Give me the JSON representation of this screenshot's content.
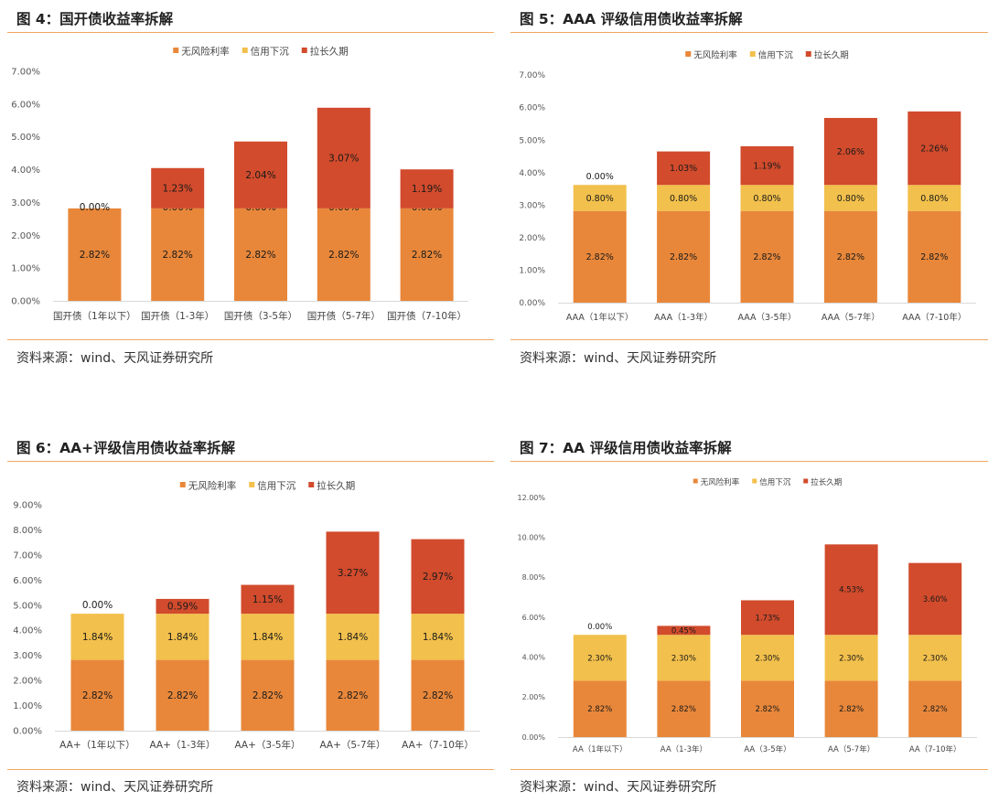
{
  "colors": {
    "rf": "#E8873A",
    "credit": "#F2C04C",
    "dur": "#D14B2C"
  },
  "charts": [
    {
      "title": "图 4：国开债收益率拆解",
      "source": "资料来源：wind、天风证券研究所",
      "chart_data": {
        "type": "bar",
        "stacked": true,
        "categories": [
          "国开债（1年以下）",
          "国开债（1-3年）",
          "国开债（3-5年）",
          "国开债（5-7年）",
          "国开债（7-10年）"
        ],
        "series": [
          {
            "name": "无风险利率",
            "values": [
              2.82,
              2.82,
              2.82,
              2.82,
              2.82
            ],
            "labels": [
              "2.82%",
              "2.82%",
              "2.82%",
              "2.82%",
              "2.82%"
            ]
          },
          {
            "name": "信用下沉",
            "values": [
              0.0,
              0.0,
              0.0,
              0.0,
              0.0
            ],
            "labels": [
              "0.00%",
              "0.00%",
              "0.00%",
              "0.00%",
              "0.00%"
            ]
          },
          {
            "name": "拉长久期",
            "values": [
              null,
              1.23,
              2.04,
              3.07,
              1.19
            ],
            "labels": [
              null,
              "1.23%",
              "2.04%",
              "3.07%",
              "1.19%"
            ]
          }
        ],
        "ylim": [
          0,
          7
        ],
        "ytick_step": 1,
        "ytick_labels": [
          "0.00%",
          "1.00%",
          "2.00%",
          "3.00%",
          "4.00%",
          "5.00%",
          "6.00%",
          "7.00%"
        ],
        "legend": "top-center"
      }
    },
    {
      "title": "图 5：AAA 评级信用债收益率拆解",
      "source": "资料来源：wind、天风证券研究所",
      "chart_data": {
        "type": "bar",
        "stacked": true,
        "categories": [
          "AAA（1年以下）",
          "AAA（1-3年）",
          "AAA（3-5年）",
          "AAA（5-7年）",
          "AAA（7-10年）"
        ],
        "series": [
          {
            "name": "无风险利率",
            "values": [
              2.82,
              2.82,
              2.82,
              2.82,
              2.82
            ],
            "labels": [
              "2.82%",
              "2.82%",
              "2.82%",
              "2.82%",
              "2.82%"
            ]
          },
          {
            "name": "信用下沉",
            "values": [
              0.8,
              0.8,
              0.8,
              0.8,
              0.8
            ],
            "labels": [
              "0.80%",
              "0.80%",
              "0.80%",
              "0.80%",
              "0.80%"
            ]
          },
          {
            "name": "拉长久期",
            "values": [
              0.0,
              1.03,
              1.19,
              2.06,
              2.26
            ],
            "labels": [
              "0.00%",
              "1.03%",
              "1.19%",
              "2.06%",
              "2.26%"
            ]
          }
        ],
        "ylim": [
          0,
          7
        ],
        "ytick_step": 1,
        "ytick_labels": [
          "0.00%",
          "1.00%",
          "2.00%",
          "3.00%",
          "4.00%",
          "5.00%",
          "6.00%",
          "7.00%"
        ],
        "legend": "top-center"
      }
    },
    {
      "title": "图 6：AA+评级信用债收益率拆解",
      "source": "资料来源：wind、天风证券研究所",
      "chart_data": {
        "type": "bar",
        "stacked": true,
        "categories": [
          "AA+（1年以下）",
          "AA+（1-3年）",
          "AA+（3-5年）",
          "AA+（5-7年）",
          "AA+（7-10年）"
        ],
        "series": [
          {
            "name": "无风险利率",
            "values": [
              2.82,
              2.82,
              2.82,
              2.82,
              2.82
            ],
            "labels": [
              "2.82%",
              "2.82%",
              "2.82%",
              "2.82%",
              "2.82%"
            ]
          },
          {
            "name": "信用下沉",
            "values": [
              1.84,
              1.84,
              1.84,
              1.84,
              1.84
            ],
            "labels": [
              "1.84%",
              "1.84%",
              "1.84%",
              "1.84%",
              "1.84%"
            ]
          },
          {
            "name": "拉长久期",
            "values": [
              0.0,
              0.59,
              1.15,
              3.27,
              2.97
            ],
            "labels": [
              "0.00%",
              "0.59%",
              "1.15%",
              "3.27%",
              "2.97%"
            ]
          }
        ],
        "ylim": [
          0,
          9
        ],
        "ytick_step": 1,
        "ytick_labels": [
          "0.00%",
          "1.00%",
          "2.00%",
          "3.00%",
          "4.00%",
          "5.00%",
          "6.00%",
          "7.00%",
          "8.00%",
          "9.00%"
        ],
        "legend": "top-center"
      }
    },
    {
      "title": "图 7：AA 评级信用债收益率拆解",
      "source": "资料来源：wind、天风证券研究所",
      "chart_data": {
        "type": "bar",
        "stacked": true,
        "categories": [
          "AA（1年以下）",
          "AA（1-3年）",
          "AA（3-5年）",
          "AA（5-7年）",
          "AA（7-10年）"
        ],
        "series": [
          {
            "name": "无风险利率",
            "values": [
              2.82,
              2.82,
              2.82,
              2.82,
              2.82
            ],
            "labels": [
              "2.82%",
              "2.82%",
              "2.82%",
              "2.82%",
              "2.82%"
            ]
          },
          {
            "name": "信用下沉",
            "values": [
              2.3,
              2.3,
              2.3,
              2.3,
              2.3
            ],
            "labels": [
              "2.30%",
              "2.30%",
              "2.30%",
              "2.30%",
              "2.30%"
            ]
          },
          {
            "name": "拉长久期",
            "values": [
              0.0,
              0.45,
              1.73,
              4.53,
              3.6
            ],
            "labels": [
              "0.00%",
              "0.45%",
              "1.73%",
              "4.53%",
              "3.60%"
            ]
          }
        ],
        "ylim": [
          0,
          12
        ],
        "ytick_step": 2,
        "ytick_labels": [
          "0.00%",
          "2.00%",
          "4.00%",
          "6.00%",
          "8.00%",
          "10.00%",
          "12.00%"
        ],
        "legend": "top-center"
      }
    }
  ]
}
